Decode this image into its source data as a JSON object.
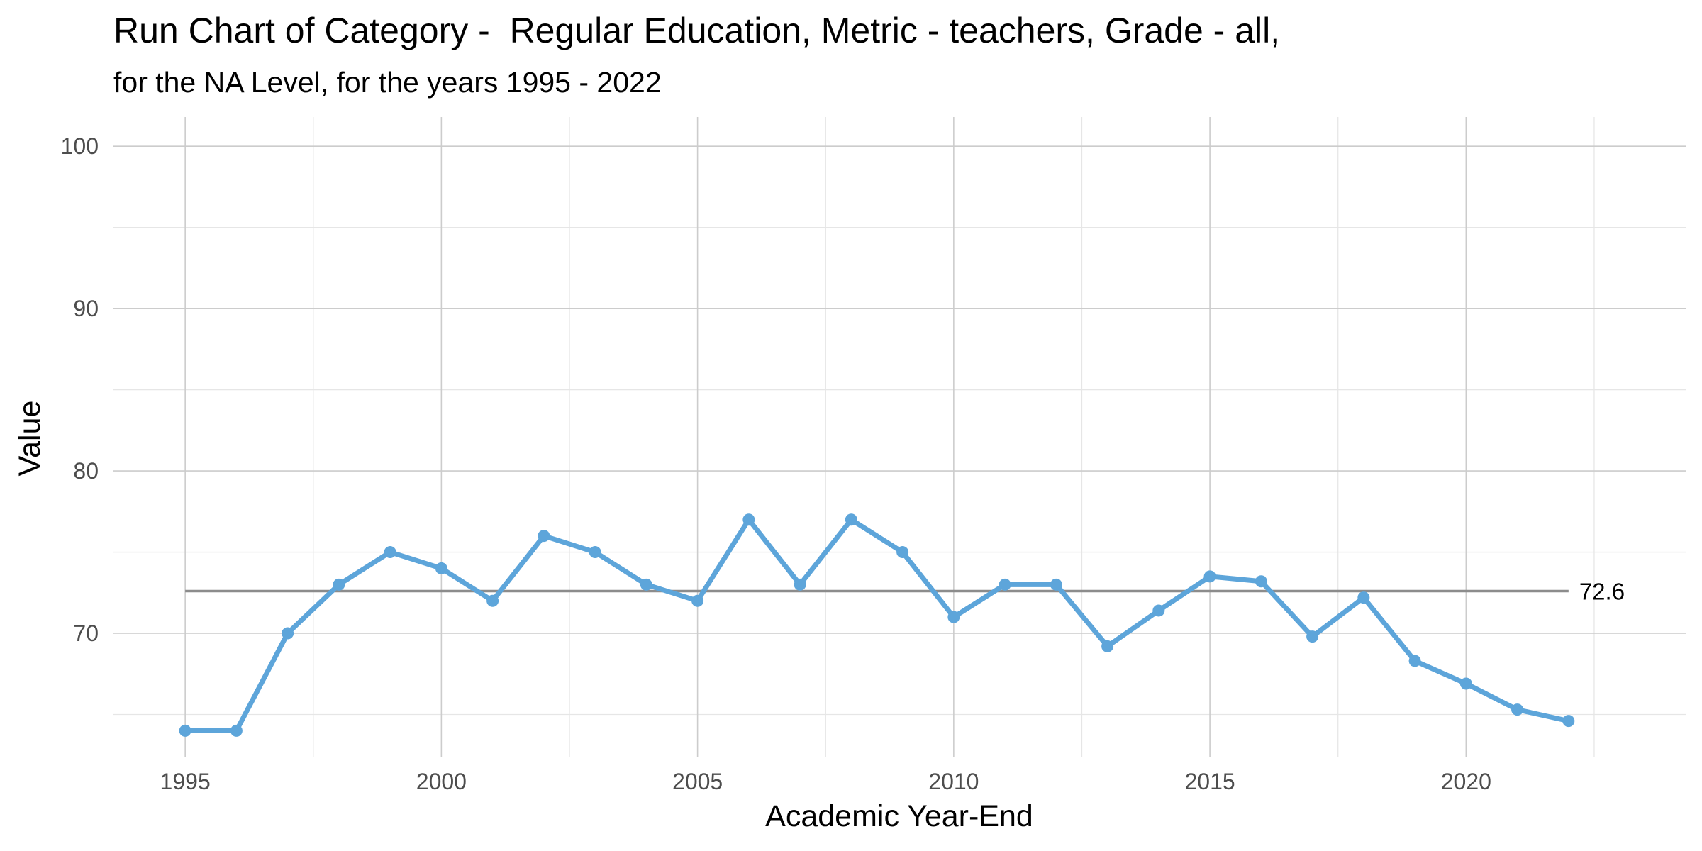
{
  "chart_data": {
    "type": "line",
    "title": "Run Chart of Category -  Regular Education, Metric - teachers, Grade - all,",
    "subtitle": "for the NA Level, for the years 1995 - 2022",
    "xlabel": "Academic Year-End",
    "ylabel": "Value",
    "xlim": [
      1993.6,
      2024.3
    ],
    "ylim": [
      62.4,
      101.8
    ],
    "x_ticks": [
      1995,
      2000,
      2005,
      2010,
      2015,
      2020
    ],
    "x_tick_labels": [
      "1995",
      "2000",
      "2005",
      "2010",
      "2015",
      "2020"
    ],
    "y_ticks": [
      70,
      80,
      90,
      100
    ],
    "y_tick_labels": [
      "70",
      "80",
      "90",
      "100"
    ],
    "grid": true,
    "legend": "none",
    "series": [
      {
        "x": [
          1995,
          1996,
          1997,
          1998,
          1999,
          2000,
          2001,
          2002,
          2003,
          2004,
          2005,
          2006,
          2007,
          2008,
          2009,
          2010,
          2011,
          2012,
          2013,
          2014,
          2015,
          2016,
          2017,
          2018,
          2019,
          2020,
          2021,
          2022
        ],
        "values": [
          64.0,
          64.0,
          70.0,
          73.0,
          75.0,
          74.0,
          72.0,
          76.0,
          75.0,
          73.0,
          72.0,
          77.0,
          73.0,
          77.0,
          75.0,
          71.0,
          73.0,
          73.0,
          69.2,
          71.4,
          73.5,
          73.2,
          69.8,
          72.2,
          68.3,
          66.9,
          65.3,
          64.6
        ],
        "color": "#5da5da"
      }
    ],
    "reference_line": {
      "value": 72.6,
      "label": "72.6",
      "x_start": 1995,
      "x_end": 2022,
      "color": "#8c8c8c"
    }
  },
  "colors": {
    "series": "#5da5da",
    "mean_line": "#8c8c8c",
    "grid_major": "#cccccc",
    "grid_minor": "#e6e6e6"
  }
}
